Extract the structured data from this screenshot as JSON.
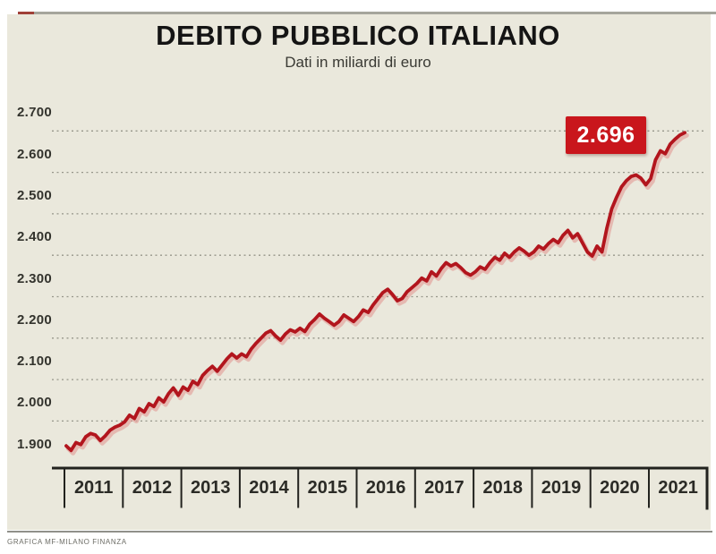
{
  "page": {
    "title": "DEBITO PUBBLICO ITALIANO",
    "subtitle": "Dati in miliardi di euro",
    "credit": "GRAFICA MF-MILANO FINANZA",
    "callout_label": "2.696"
  },
  "colors": {
    "panel_background": "#eae8dc",
    "line": "#b2151d",
    "line_shadow": "#e2a09a",
    "callout_background": "#c9161c",
    "callout_text": "#ffffff",
    "gridline": "#8e8e82",
    "axis": "#22221e",
    "title_text": "#141414"
  },
  "chart_data": {
    "type": "line",
    "title": "DEBITO PUBBLICO ITALIANO",
    "subtitle": "Dati in miliardi di euro",
    "unit": "miliardi di euro",
    "grid": "dotted horizontal gridlines",
    "legend": "none",
    "ylim": [
      1900,
      2700
    ],
    "y_tick_labels": [
      "2.700",
      "2.600",
      "2.500",
      "2.400",
      "2.300",
      "2.200",
      "2.100",
      "2.000",
      "1.900"
    ],
    "y_tick_values": [
      2700,
      2600,
      2500,
      2400,
      2300,
      2200,
      2100,
      2000,
      1900
    ],
    "x_year_labels": [
      "2011",
      "2012",
      "2013",
      "2014",
      "2015",
      "2016",
      "2017",
      "2018",
      "2019",
      "2020",
      "2021"
    ],
    "annotation": {
      "text": "2.696",
      "value": 2696,
      "position": "last data point, mid-2021"
    },
    "series": [
      {
        "name": "Debito pubblico italiano",
        "frequency": "monthly",
        "start": "2011-01",
        "end": "2021-08",
        "values": [
          1940,
          1929,
          1948,
          1943,
          1962,
          1970,
          1966,
          1953,
          1964,
          1978,
          1985,
          1990,
          1998,
          2014,
          2006,
          2030,
          2022,
          2042,
          2035,
          2056,
          2046,
          2066,
          2080,
          2062,
          2082,
          2074,
          2096,
          2088,
          2110,
          2122,
          2132,
          2120,
          2135,
          2150,
          2162,
          2152,
          2162,
          2155,
          2174,
          2188,
          2200,
          2212,
          2218,
          2205,
          2195,
          2210,
          2220,
          2215,
          2224,
          2216,
          2234,
          2245,
          2258,
          2248,
          2240,
          2231,
          2240,
          2256,
          2248,
          2240,
          2252,
          2268,
          2262,
          2280,
          2295,
          2310,
          2318,
          2305,
          2290,
          2296,
          2312,
          2322,
          2332,
          2345,
          2338,
          2360,
          2350,
          2368,
          2382,
          2374,
          2380,
          2370,
          2358,
          2352,
          2360,
          2372,
          2366,
          2382,
          2395,
          2388,
          2405,
          2395,
          2408,
          2418,
          2410,
          2400,
          2408,
          2422,
          2415,
          2428,
          2438,
          2430,
          2448,
          2460,
          2442,
          2452,
          2430,
          2408,
          2398,
          2422,
          2408,
          2465,
          2512,
          2540,
          2565,
          2580,
          2590,
          2594,
          2586,
          2570,
          2585,
          2630,
          2652,
          2645,
          2668,
          2680,
          2690,
          2696
        ]
      }
    ]
  }
}
